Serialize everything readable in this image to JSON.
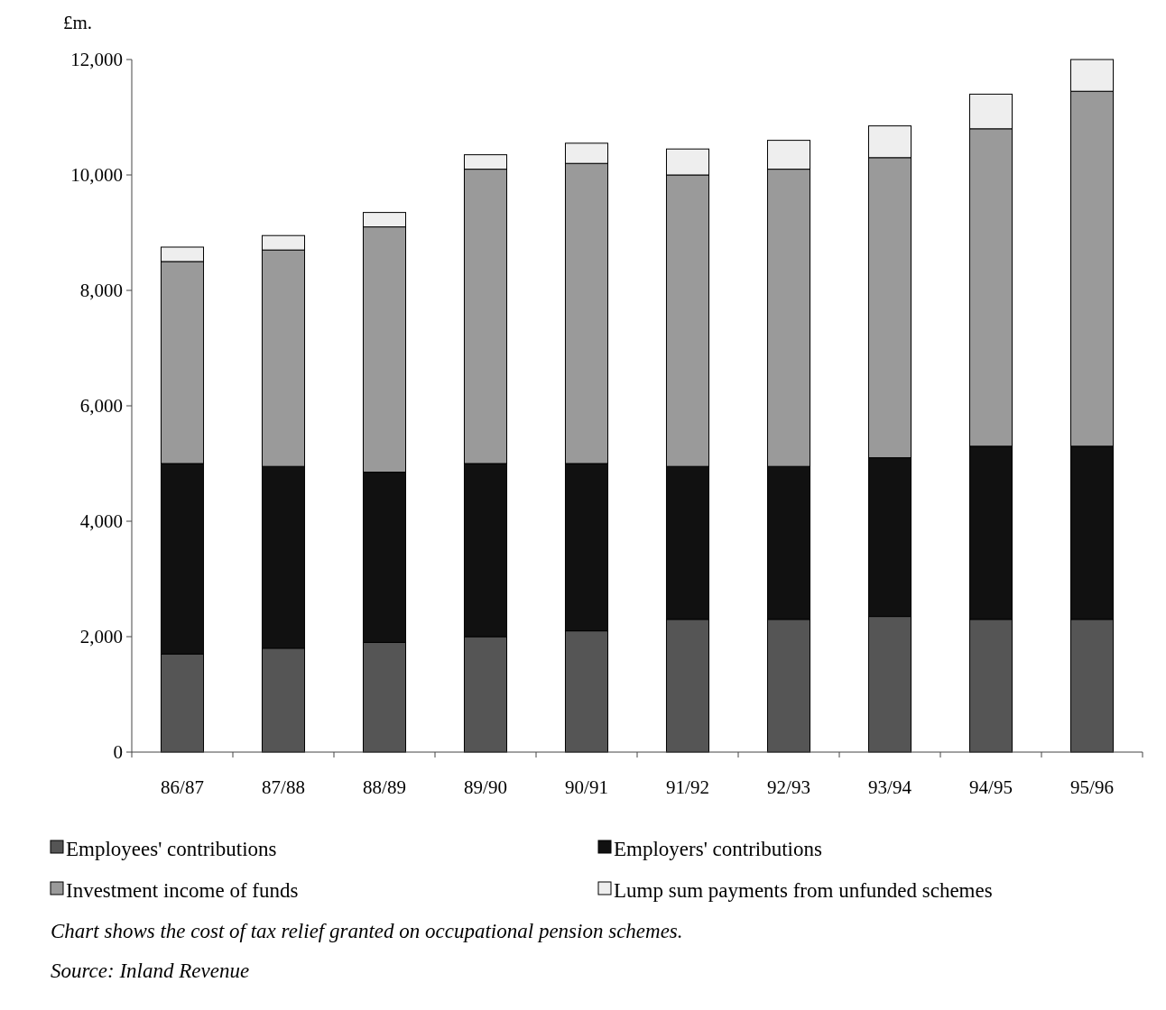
{
  "chart_data": {
    "type": "bar",
    "stacked": true,
    "ylabel": "£m.",
    "categories": [
      "86/87",
      "87/88",
      "88/89",
      "89/90",
      "90/91",
      "91/92",
      "92/93",
      "93/94",
      "94/95",
      "95/96"
    ],
    "series": [
      {
        "name": "Employees' contributions",
        "color": "#555555",
        "values": [
          1700,
          1800,
          1900,
          2000,
          2100,
          2300,
          2300,
          2350,
          2300,
          2300
        ]
      },
      {
        "name": "Employers' contributions",
        "color": "#111111",
        "values": [
          3300,
          3150,
          2950,
          3000,
          2900,
          2650,
          2650,
          2750,
          3000,
          3000
        ]
      },
      {
        "name": "Investment income of funds",
        "color": "#9a9a9a",
        "values": [
          3500,
          3750,
          4250,
          5100,
          5200,
          5050,
          5150,
          5200,
          5500,
          6150
        ]
      },
      {
        "name": "Lump sum payments from unfunded schemes",
        "color": "#eeeeee",
        "values": [
          250,
          250,
          250,
          250,
          350,
          450,
          500,
          550,
          600,
          550
        ]
      }
    ],
    "ylim": [
      0,
      12000
    ],
    "yticks": [
      {
        "value": 0,
        "label": "0"
      },
      {
        "value": 2000,
        "label": "2,000"
      },
      {
        "value": 4000,
        "label": "4,000"
      },
      {
        "value": 6000,
        "label": "6,000"
      },
      {
        "value": 8000,
        "label": "8,000"
      },
      {
        "value": 10000,
        "label": "10,000"
      },
      {
        "value": 12000,
        "label": "12,000"
      }
    ],
    "grid": false,
    "legend": "bottom",
    "annotations": [
      "Chart shows the cost of tax relief granted on occupational pension schemes.",
      "Source: Inland Revenue"
    ]
  }
}
